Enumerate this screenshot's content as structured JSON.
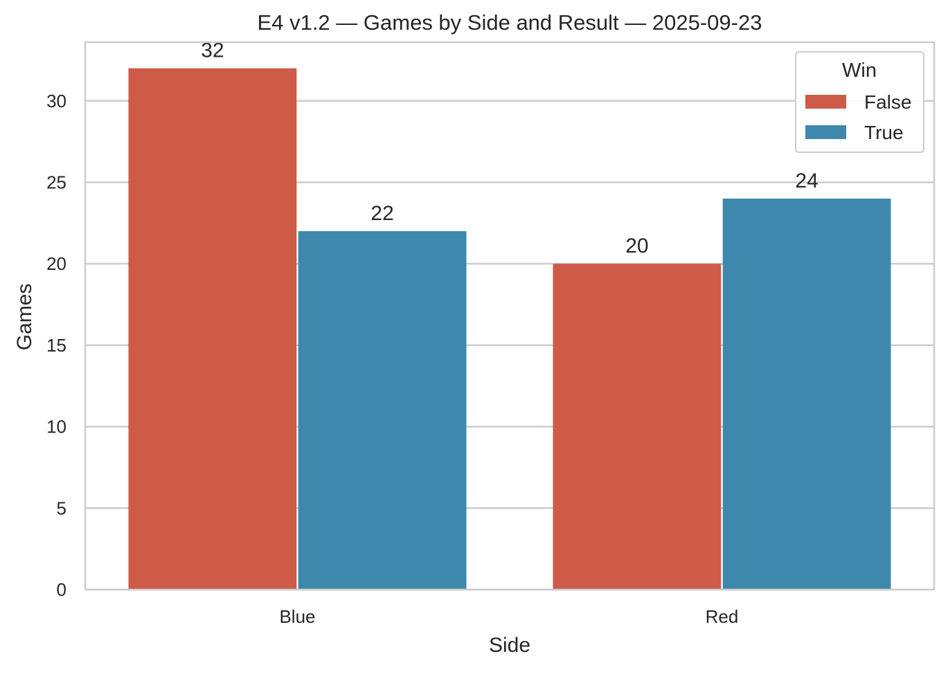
{
  "chart_data": {
    "type": "bar",
    "title": "E4 v1.2 — Games by Side and Result — 2025-09-23",
    "xlabel": "Side",
    "ylabel": "Games",
    "categories": [
      "Blue",
      "Red"
    ],
    "series": [
      {
        "name": "False",
        "values": [
          32,
          20
        ],
        "color": "#cd5b48"
      },
      {
        "name": "True",
        "values": [
          22,
          24
        ],
        "color": "#3e88ae"
      }
    ],
    "ylim": [
      0,
      33.6
    ],
    "yticks": [
      0,
      5,
      10,
      15,
      20,
      25,
      30
    ],
    "grid": true,
    "legend": {
      "title": "Win",
      "placement": "top-right"
    },
    "data_labels": true
  }
}
